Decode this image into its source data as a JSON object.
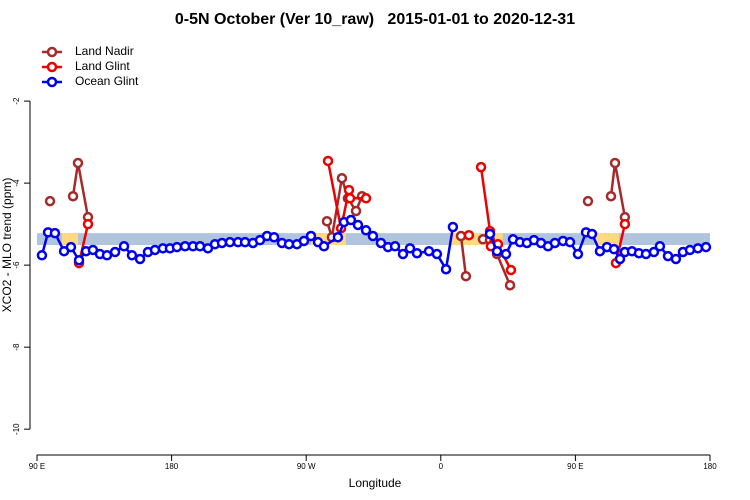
{
  "chart_data": {
    "type": "line",
    "title": "0-5N October (Ver 10_raw)   2015-01-01 to 2020-12-31",
    "xlabel": "Longitude",
    "ylabel": "XCO2 - MLO trend (ppm)",
    "xlim": [
      90,
      540
    ],
    "xticks": [
      {
        "value": 90,
        "label": "90 E"
      },
      180,
      {
        "value": 270,
        "label": "90 W"
      },
      {
        "value": 360,
        "label": "0"
      },
      {
        "value": 450,
        "label": "90 E"
      },
      {
        "value": 540,
        "label": "180"
      }
    ],
    "ylim": [
      -10.63,
      -0.51
    ],
    "yticks": [
      -2,
      -4,
      -6,
      -8,
      -10
    ],
    "legend": "top-left",
    "band": {
      "ylim": [
        -5.51,
        -5.22
      ],
      "color": "#b0c4de"
    },
    "highlights": {
      "color": "#ffd980",
      "xranges": [
        [
          106.7,
          117.4
        ],
        [
          273.2,
          296.6
        ],
        [
          366.1,
          401.5
        ],
        [
          463.0,
          479.1
        ]
      ]
    },
    "series": [
      {
        "name": "Land Nadir",
        "color": "#a52a2a",
        "x": [
          98.7,
          null,
          114.1,
          117.4,
          124.1,
          null,
          283.9,
          287.2,
          293.9,
          297.9,
          303.3,
          307.3,
          null,
          373.5,
          376.8,
          null,
          388.2,
          392.9,
          397.6,
          406.3,
          null,
          458.4,
          null,
          473.8,
          476.5,
          483.1
        ],
        "values": [
          -4.44,
          null,
          -4.32,
          -3.51,
          -4.83,
          null,
          -4.93,
          -5.32,
          -3.88,
          -4.37,
          -4.68,
          -4.32,
          null,
          -5.29,
          -6.27,
          null,
          -5.37,
          -5.39,
          -5.73,
          -6.49,
          null,
          -4.44,
          null,
          -4.32,
          -3.51,
          -4.83
        ]
      },
      {
        "name": "Land Glint",
        "color": "#ee0000",
        "x": [
          118.1,
          124.1,
          null,
          284.6,
          293.3,
          298.6,
          299.3,
          310.0,
          null,
          378.8,
          null,
          386.9,
          392.9,
          393.5,
          398.2,
          406.9,
          null,
          477.1,
          483.1
        ],
        "values": [
          -5.95,
          -5.0,
          null,
          -3.46,
          -5.1,
          -4.17,
          -4.37,
          -4.37,
          null,
          -5.27,
          null,
          -3.61,
          -5.17,
          -5.54,
          -5.49,
          -6.12,
          null,
          -5.95,
          -5.0
        ]
      },
      {
        "name": "Ocean Glint",
        "color": "#0000ee",
        "x": [
          93.3,
          97.4,
          102.0,
          108.1,
          112.7,
          118.1,
          122.8,
          127.4,
          132.1,
          136.8,
          142.2,
          148.2,
          153.5,
          158.9,
          164.2,
          168.9,
          174.2,
          178.9,
          183.6,
          189.0,
          194.3,
          199.0,
          204.3,
          209.0,
          213.7,
          219.0,
          224.4,
          229.1,
          234.4,
          239.1,
          243.8,
          248.5,
          253.8,
          258.5,
          263.8,
          268.5,
          273.2,
          277.9,
          281.9,
          291.2,
          295.3,
          299.9,
          304.6,
          310.0,
          314.6,
          320.0,
          324.7,
          329.4,
          334.7,
          339.4,
          344.1,
          352.1,
          357.4,
          363.5,
          368.1,
          null,
          392.9,
          397.6,
          403.6,
          408.3,
          412.9,
          417.6,
          422.3,
          427.0,
          431.7,
          436.3,
          441.7,
          446.4,
          451.7,
          457.1,
          461.1,
          466.4,
          471.1,
          475.8,
          479.8,
          483.1,
          487.8,
          492.5,
          497.2,
          502.5,
          506.5,
          511.9,
          517.2,
          521.9,
          526.6,
          531.9,
          537.3
        ],
        "values": [
          -5.76,
          -5.2,
          -5.22,
          -5.66,
          -5.56,
          -5.88,
          -5.66,
          -5.63,
          -5.73,
          -5.76,
          -5.68,
          -5.54,
          -5.76,
          -5.85,
          -5.68,
          -5.63,
          -5.59,
          -5.59,
          -5.56,
          -5.54,
          -5.54,
          -5.54,
          -5.59,
          -5.49,
          -5.46,
          -5.44,
          -5.44,
          -5.44,
          -5.46,
          -5.39,
          -5.29,
          -5.32,
          -5.46,
          -5.49,
          -5.49,
          -5.41,
          -5.29,
          -5.44,
          -5.54,
          -5.32,
          -4.95,
          -4.9,
          -5.02,
          -5.15,
          -5.29,
          -5.46,
          -5.56,
          -5.54,
          -5.73,
          -5.59,
          -5.71,
          -5.66,
          -5.73,
          -6.1,
          -5.07,
          null,
          -5.24,
          -5.66,
          -5.73,
          -5.37,
          -5.44,
          -5.46,
          -5.39,
          -5.46,
          -5.54,
          -5.46,
          -5.41,
          -5.44,
          -5.73,
          -5.2,
          -5.24,
          -5.66,
          -5.56,
          -5.61,
          -5.85,
          -5.68,
          -5.66,
          -5.71,
          -5.73,
          -5.68,
          -5.54,
          -5.78,
          -5.85,
          -5.68,
          -5.63,
          -5.59,
          -5.56
        ]
      }
    ]
  }
}
